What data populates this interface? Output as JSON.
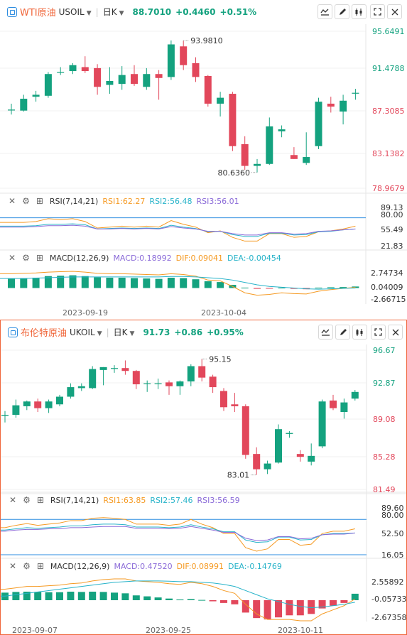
{
  "panels": [
    {
      "name": "WTI原油",
      "code": "USOIL",
      "period": "日K",
      "price": "88.7010",
      "change": "+0.4460",
      "change_pct": "+0.51%",
      "colors": {
        "up": "#14a27f",
        "down": "#e2475b",
        "accent": "#f0663a"
      },
      "price_axis": [
        "95.6491",
        "91.4788",
        "87.3085",
        "83.1382",
        "78.9679"
      ],
      "annotations": {
        "high": "93.9810",
        "low": "80.6360"
      },
      "rsi": {
        "label": "RSI(7,14,21)",
        "rsi1": "RSI1:62.27",
        "rsi2": "RSI2:56.48",
        "rsi3": "RSI3:56.01",
        "axis": [
          "89.13",
          "80.00",
          "55.49",
          "21.83"
        ]
      },
      "macd": {
        "label": "MACD(12,26,9)",
        "macd": "MACD:0.18992",
        "dif": "DIF:0.09041",
        "dea": "DEA:-0.00454",
        "axis": [
          "2.74734",
          "0.04009",
          "-2.66715"
        ]
      },
      "dates": [
        "2023-09-19",
        "2023-10-04"
      ],
      "chart_data": {
        "type": "candlestick",
        "title": "WTI原油 USOIL 日K",
        "ylim": [
          78.9679,
          95.6491
        ],
        "candles": [
          {
            "o": 87.0,
            "h": 87.6,
            "l": 86.5,
            "c": 87.0
          },
          {
            "o": 86.9,
            "h": 88.5,
            "l": 86.8,
            "c": 88.1
          },
          {
            "o": 88.3,
            "h": 88.9,
            "l": 87.8,
            "c": 88.5
          },
          {
            "o": 88.4,
            "h": 90.8,
            "l": 88.2,
            "c": 90.6
          },
          {
            "o": 90.8,
            "h": 91.3,
            "l": 90.5,
            "c": 90.8
          },
          {
            "o": 90.9,
            "h": 91.7,
            "l": 90.6,
            "c": 91.5
          },
          {
            "o": 91.3,
            "h": 92.4,
            "l": 90.7,
            "c": 90.9
          },
          {
            "o": 91.2,
            "h": 91.6,
            "l": 88.5,
            "c": 89.3
          },
          {
            "o": 89.5,
            "h": 91.3,
            "l": 88.6,
            "c": 89.9
          },
          {
            "o": 89.6,
            "h": 91.4,
            "l": 89.0,
            "c": 90.5
          },
          {
            "o": 90.6,
            "h": 91.5,
            "l": 89.4,
            "c": 89.6
          },
          {
            "o": 89.3,
            "h": 91.2,
            "l": 89.0,
            "c": 90.6
          },
          {
            "o": 90.6,
            "h": 91.0,
            "l": 88.0,
            "c": 90.2
          },
          {
            "o": 90.3,
            "h": 94.0,
            "l": 90.0,
            "c": 93.6
          },
          {
            "o": 93.4,
            "h": 93.98,
            "l": 91.0,
            "c": 91.5
          },
          {
            "o": 91.7,
            "h": 92.3,
            "l": 89.8,
            "c": 90.3
          },
          {
            "o": 90.4,
            "h": 90.5,
            "l": 87.3,
            "c": 87.6
          },
          {
            "o": 87.6,
            "h": 88.8,
            "l": 86.3,
            "c": 88.2
          },
          {
            "o": 88.6,
            "h": 88.8,
            "l": 82.8,
            "c": 83.3
          },
          {
            "o": 83.5,
            "h": 84.3,
            "l": 80.9,
            "c": 81.3
          },
          {
            "o": 81.3,
            "h": 82.0,
            "l": 80.636,
            "c": 81.5
          },
          {
            "o": 81.5,
            "h": 86.2,
            "l": 81.4,
            "c": 85.3
          },
          {
            "o": 84.8,
            "h": 85.4,
            "l": 84.2,
            "c": 85.0
          },
          {
            "o": 82.4,
            "h": 83.2,
            "l": 82.0,
            "c": 82.0
          },
          {
            "o": 81.6,
            "h": 84.7,
            "l": 81.4,
            "c": 82.2
          },
          {
            "o": 83.3,
            "h": 88.2,
            "l": 83.0,
            "c": 87.8
          },
          {
            "o": 87.6,
            "h": 88.3,
            "l": 86.7,
            "c": 87.3
          },
          {
            "o": 86.8,
            "h": 88.5,
            "l": 85.5,
            "c": 87.9
          },
          {
            "o": 88.7,
            "h": 89.1,
            "l": 88.0,
            "c": 88.7
          }
        ],
        "rsi1": [
          70,
          70,
          72,
          78,
          76,
          78,
          72,
          58,
          60,
          62,
          60,
          62,
          60,
          74,
          66,
          60,
          48,
          52,
          38,
          30,
          30,
          46,
          46,
          38,
          40,
          50,
          52,
          56,
          62
        ],
        "rsi2": [
          62,
          62,
          63,
          66,
          66,
          67,
          65,
          56,
          57,
          58,
          57,
          58,
          57,
          64,
          60,
          57,
          50,
          51,
          44,
          40,
          40,
          47,
          47,
          43,
          44,
          50,
          51,
          54,
          56
        ],
        "rsi3": [
          60,
          60,
          61,
          63,
          63,
          64,
          62,
          56,
          56,
          57,
          56,
          57,
          56,
          61,
          58,
          56,
          51,
          51,
          46,
          43,
          43,
          48,
          48,
          45,
          46,
          51,
          52,
          54,
          56
        ],
        "macd_hist": [
          1.2,
          1.25,
          1.3,
          1.5,
          1.55,
          1.6,
          1.5,
          1.35,
          1.3,
          1.3,
          1.25,
          1.2,
          1.15,
          1.3,
          1.25,
          1.1,
          0.85,
          0.75,
          0.4,
          0.05,
          -0.1,
          -0.05,
          0.05,
          -0.1,
          -0.15,
          0.05,
          0.1,
          0.12,
          0.19
        ],
        "dif": [
          1.8,
          1.85,
          1.9,
          2.0,
          2.05,
          2.1,
          2.0,
          1.85,
          1.8,
          1.8,
          1.75,
          1.7,
          1.65,
          1.8,
          1.7,
          1.5,
          1.0,
          0.9,
          0.2,
          -0.6,
          -0.9,
          -0.8,
          -0.6,
          -0.7,
          -0.75,
          -0.4,
          -0.2,
          -0.05,
          0.09
        ],
        "dea": [
          1.2,
          1.2,
          1.25,
          1.3,
          1.35,
          1.4,
          1.4,
          1.4,
          1.4,
          1.4,
          1.4,
          1.4,
          1.4,
          1.45,
          1.45,
          1.4,
          1.3,
          1.2,
          1.0,
          0.7,
          0.4,
          0.2,
          0.1,
          0.0,
          -0.1,
          -0.15,
          -0.1,
          -0.05,
          -0.005
        ]
      }
    },
    {
      "name": "布伦特原油",
      "code": "UKOIL",
      "period": "日K",
      "price": "91.73",
      "change": "+0.86",
      "change_pct": "+0.95%",
      "colors": {
        "up": "#14a27f",
        "down": "#e2475b",
        "accent": "#f0663a"
      },
      "price_axis": [
        "96.67",
        "92.87",
        "89.08",
        "85.28",
        "81.49"
      ],
      "annotations": {
        "high": "95.15",
        "low": "83.01"
      },
      "rsi": {
        "label": "RSI(7,14,21)",
        "rsi1": "RSI1:63.85",
        "rsi2": "RSI2:57.46",
        "rsi3": "RSI3:56.59",
        "axis": [
          "89.60",
          "80.00",
          "52.50",
          "16.05"
        ]
      },
      "macd": {
        "label": "MACD(12,26,9)",
        "macd": "MACD:0.47520",
        "dif": "DIF:0.08991",
        "dea": "DEA:-0.14769",
        "axis": [
          "2.55892",
          "-0.05733",
          "-2.67358"
        ]
      },
      "dates": [
        "2023-09-07",
        "2023-09-25",
        "2023-10-11"
      ],
      "chart_data": {
        "type": "candlestick",
        "title": "布伦特原油 UKOIL 日K",
        "ylim": [
          81.49,
          96.67
        ],
        "candles": [
          {
            "o": 89.2,
            "h": 89.7,
            "l": 88.5,
            "c": 89.3
          },
          {
            "o": 89.3,
            "h": 90.9,
            "l": 89.0,
            "c": 90.3
          },
          {
            "o": 90.2,
            "h": 90.8,
            "l": 89.8,
            "c": 90.7
          },
          {
            "o": 90.7,
            "h": 91.0,
            "l": 89.6,
            "c": 90.0
          },
          {
            "o": 90.0,
            "h": 90.9,
            "l": 89.5,
            "c": 90.7
          },
          {
            "o": 90.4,
            "h": 91.4,
            "l": 90.2,
            "c": 91.2
          },
          {
            "o": 91.2,
            "h": 92.6,
            "l": 91.0,
            "c": 92.2
          },
          {
            "o": 92.1,
            "h": 92.6,
            "l": 91.8,
            "c": 92.3
          },
          {
            "o": 92.1,
            "h": 94.4,
            "l": 92.0,
            "c": 94.1
          },
          {
            "o": 94.0,
            "h": 94.3,
            "l": 92.4,
            "c": 94.3
          },
          {
            "o": 94.2,
            "h": 94.5,
            "l": 93.7,
            "c": 94.2
          },
          {
            "o": 94.2,
            "h": 95.0,
            "l": 93.5,
            "c": 93.9
          },
          {
            "o": 93.9,
            "h": 94.0,
            "l": 92.0,
            "c": 92.5
          },
          {
            "o": 92.6,
            "h": 92.9,
            "l": 91.7,
            "c": 92.6
          },
          {
            "o": 92.6,
            "h": 93.1,
            "l": 92.0,
            "c": 92.6
          },
          {
            "o": 92.7,
            "h": 92.9,
            "l": 91.4,
            "c": 92.3
          },
          {
            "o": 92.3,
            "h": 92.9,
            "l": 91.4,
            "c": 92.8
          },
          {
            "o": 92.8,
            "h": 94.6,
            "l": 92.3,
            "c": 94.4
          },
          {
            "o": 94.4,
            "h": 95.15,
            "l": 92.8,
            "c": 93.2
          },
          {
            "o": 93.3,
            "h": 93.5,
            "l": 91.6,
            "c": 92.2
          },
          {
            "o": 91.8,
            "h": 92.1,
            "l": 89.7,
            "c": 90.1
          },
          {
            "o": 90.4,
            "h": 91.6,
            "l": 89.6,
            "c": 90.2
          },
          {
            "o": 90.2,
            "h": 90.4,
            "l": 84.7,
            "c": 85.1
          },
          {
            "o": 85.2,
            "h": 85.9,
            "l": 83.01,
            "c": 83.6
          },
          {
            "o": 83.6,
            "h": 84.5,
            "l": 83.1,
            "c": 84.2
          },
          {
            "o": 84.3,
            "h": 88.3,
            "l": 84.2,
            "c": 87.8
          },
          {
            "o": 87.3,
            "h": 87.6,
            "l": 86.9,
            "c": 87.4
          },
          {
            "o": 85.2,
            "h": 85.6,
            "l": 84.4,
            "c": 84.9
          },
          {
            "o": 84.4,
            "h": 86.3,
            "l": 84.0,
            "c": 85.0
          },
          {
            "o": 86.0,
            "h": 90.9,
            "l": 85.8,
            "c": 90.7
          },
          {
            "o": 90.8,
            "h": 91.4,
            "l": 89.8,
            "c": 90.0
          },
          {
            "o": 89.6,
            "h": 91.0,
            "l": 88.9,
            "c": 90.6
          },
          {
            "o": 91.0,
            "h": 91.9,
            "l": 90.8,
            "c": 91.7
          }
        ],
        "rsi1": [
          66,
          70,
          73,
          70,
          72,
          74,
          78,
          78,
          82,
          83,
          82,
          80,
          72,
          72,
          72,
          70,
          72,
          80,
          72,
          66,
          56,
          56,
          32,
          26,
          30,
          46,
          46,
          36,
          38,
          56,
          60,
          60,
          64
        ],
        "rsi2": [
          62,
          64,
          66,
          65,
          66,
          67,
          69,
          69,
          71,
          72,
          72,
          71,
          67,
          67,
          67,
          66,
          67,
          71,
          67,
          64,
          59,
          59,
          45,
          41,
          42,
          50,
          50,
          45,
          46,
          54,
          56,
          56,
          57
        ],
        "rsi3": [
          60,
          62,
          63,
          63,
          64,
          64,
          66,
          66,
          67,
          68,
          68,
          68,
          65,
          65,
          65,
          64,
          65,
          68,
          65,
          62,
          58,
          58,
          48,
          44,
          45,
          51,
          51,
          47,
          48,
          54,
          55,
          55,
          57
        ],
        "macd_hist": [
          0.55,
          0.6,
          0.62,
          0.6,
          0.58,
          0.58,
          0.62,
          0.6,
          0.62,
          0.6,
          0.55,
          0.5,
          0.35,
          0.28,
          0.2,
          0.12,
          0.05,
          0.08,
          0.02,
          -0.08,
          -0.2,
          -0.3,
          -0.9,
          -1.3,
          -1.4,
          -1.25,
          -1.1,
          -1.1,
          -1.0,
          -0.6,
          -0.4,
          -0.2,
          0.47
        ],
        "dif": [
          0.8,
          0.9,
          1.0,
          1.0,
          1.05,
          1.1,
          1.2,
          1.25,
          1.4,
          1.5,
          1.55,
          1.55,
          1.4,
          1.35,
          1.3,
          1.2,
          1.15,
          1.3,
          1.2,
          1.0,
          0.7,
          0.5,
          -0.3,
          -1.0,
          -1.4,
          -1.4,
          -1.4,
          -1.5,
          -1.5,
          -1.0,
          -0.7,
          -0.4,
          0.09
        ],
        "dea": [
          0.3,
          0.4,
          0.5,
          0.6,
          0.7,
          0.8,
          0.9,
          1.0,
          1.1,
          1.2,
          1.3,
          1.35,
          1.4,
          1.4,
          1.4,
          1.38,
          1.35,
          1.35,
          1.3,
          1.25,
          1.15,
          1.0,
          0.7,
          0.4,
          0.1,
          -0.1,
          -0.3,
          -0.45,
          -0.55,
          -0.5,
          -0.4,
          -0.3,
          -0.15
        ]
      }
    }
  ]
}
